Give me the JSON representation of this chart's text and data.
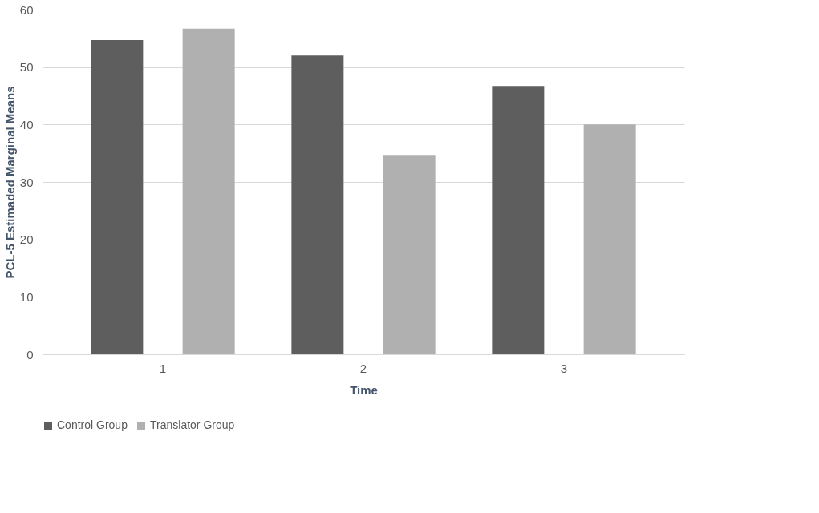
{
  "chart_data": {
    "type": "bar",
    "xlabel": "Time",
    "ylabel": "PCL-5 Estimaded Marginal Means",
    "categories": [
      "1",
      "2",
      "3"
    ],
    "series": [
      {
        "name": "Control Group",
        "color": "#5e5e5e",
        "values": [
          54.7,
          52.0,
          46.7
        ]
      },
      {
        "name": "Translator Group",
        "color": "#b0b0b0",
        "values": [
          56.7,
          34.7,
          40.0
        ]
      }
    ],
    "ylim": [
      0,
      60
    ],
    "yticks": [
      0,
      10,
      20,
      30,
      40,
      50,
      60
    ],
    "grid": "y",
    "legend": "bottom"
  }
}
